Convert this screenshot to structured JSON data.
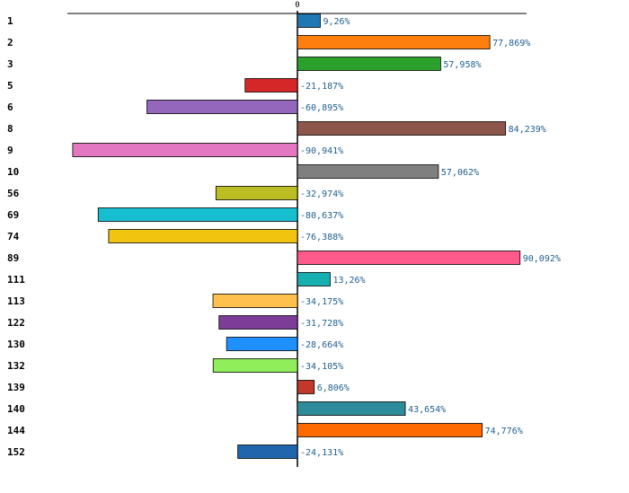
{
  "chart_data": {
    "type": "bar",
    "orientation": "horizontal",
    "title": "",
    "xlabel": "",
    "ylabel": "",
    "xlim": [
      -100,
      100
    ],
    "zero_tick_label": "0",
    "grid": false,
    "legend": "none",
    "categories": [
      "1",
      "2",
      "3",
      "5",
      "6",
      "8",
      "9",
      "10",
      "56",
      "69",
      "74",
      "89",
      "111",
      "113",
      "122",
      "130",
      "132",
      "139",
      "140",
      "144",
      "152"
    ],
    "values": [
      9.26,
      77.869,
      57.958,
      -21.187,
      -60.895,
      84.239,
      -90.941,
      57.062,
      -32.974,
      -80.637,
      -76.388,
      90.092,
      13.26,
      -34.175,
      -31.728,
      -28.664,
      -34.105,
      6.806,
      43.654,
      74.776,
      -24.131
    ],
    "labels": [
      "9,26%",
      "77,869%",
      "57,958%",
      "-21,187%",
      "-60,895%",
      "84,239%",
      "-90,941%",
      "57,062%",
      "-32,974%",
      "-80,637%",
      "-76,388%",
      "90,092%",
      "13,26%",
      "-34,175%",
      "-31,728%",
      "-28,664%",
      "-34,105%",
      "6,806%",
      "43,654%",
      "74,776%",
      "-24,131%"
    ],
    "colors": [
      "#1f77b4",
      "#ff7f0e",
      "#2ca02c",
      "#d62728",
      "#9467bd",
      "#8c564b",
      "#e377c2",
      "#7f7f7f",
      "#bcbd22",
      "#17becf",
      "#f1c40f",
      "#ff5a8c",
      "#17b0b0",
      "#ffc04d",
      "#7d3c98",
      "#1e90ff",
      "#90ee5a",
      "#c0392b",
      "#2e8b9a",
      "#ff6a00",
      "#2166ac"
    ]
  }
}
